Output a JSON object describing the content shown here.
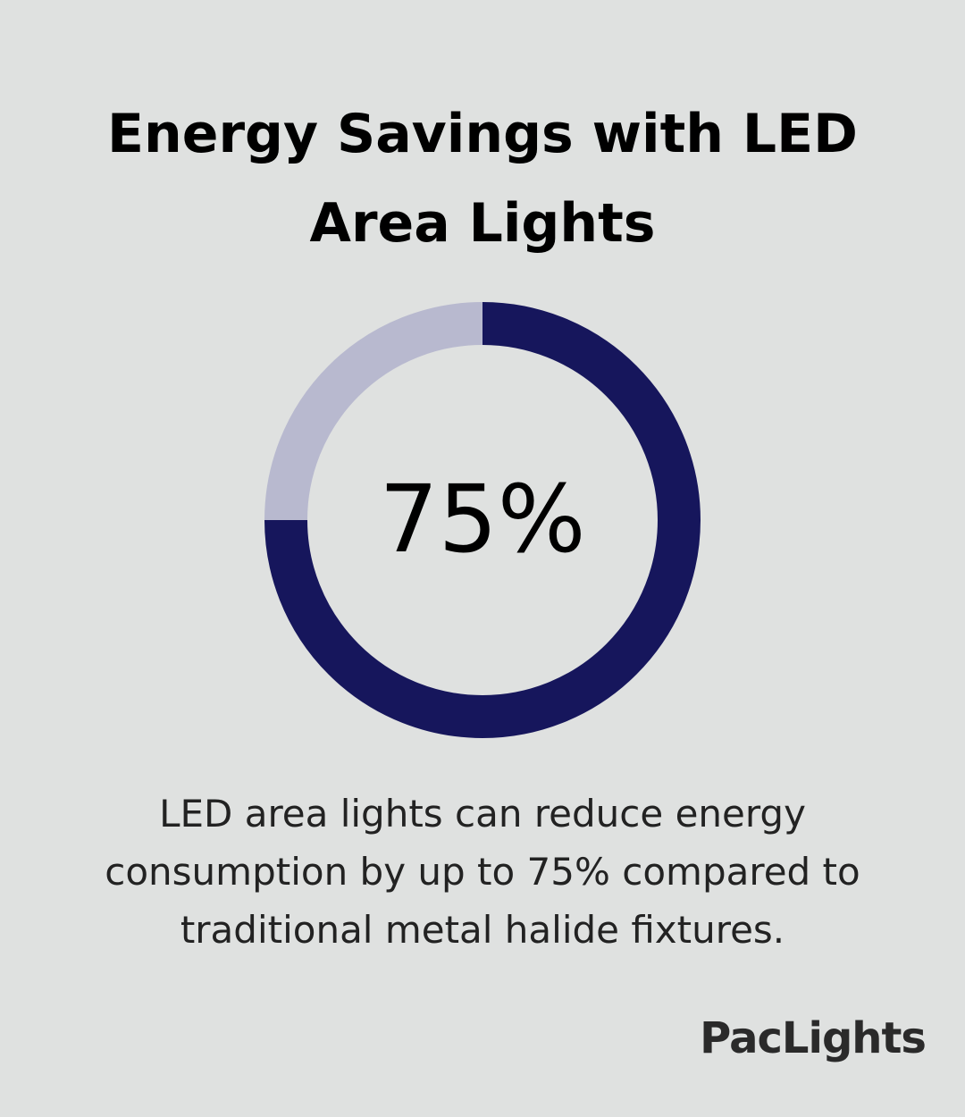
{
  "title": "Energy Savings with LED Area Lights",
  "chart_data": {
    "type": "pie",
    "style": "donut",
    "value_percent": 75,
    "center_label": "75%",
    "slices": [
      {
        "value": 75,
        "color": "#16165c"
      },
      {
        "value": 25,
        "color": "#b8b9cf"
      }
    ]
  },
  "description": "LED area lights can reduce energy consumption by up to 75% compared to traditional metal halide fixtures.",
  "brand": {
    "name": "PacLights"
  },
  "colors": {
    "background": "#dfe1e0",
    "accent": "#16165c",
    "track": "#b8b9cf"
  }
}
